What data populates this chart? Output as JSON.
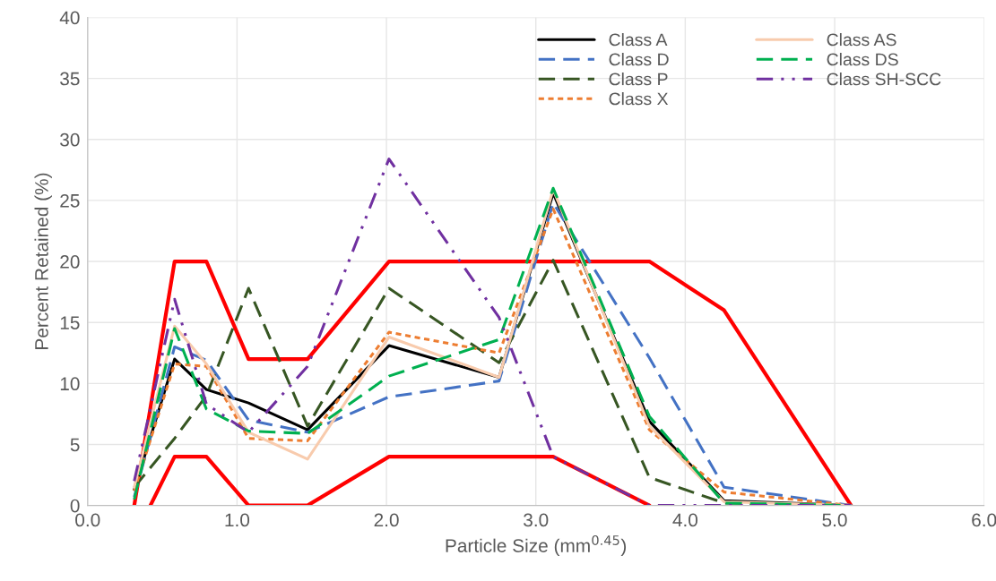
{
  "chart_data": {
    "type": "line",
    "xlabel": "Particle Size (mm$^{0.45}$)",
    "ylabel": "Percent Retained (%)",
    "x": [
      0.312,
      0.582,
      0.795,
      1.077,
      1.472,
      2.017,
      2.754,
      3.116,
      3.76,
      4.26,
      5.11
    ],
    "series": [
      {
        "color": "#ff0000",
        "x": [
          0.312,
          0.582,
          0.795,
          1.077,
          1.472,
          2.017,
          3.76,
          4.26,
          5.11
        ],
        "values": [
          0,
          20,
          20,
          12,
          12,
          20,
          20,
          16,
          0
        ]
      },
      {
        "color": "#ff0000",
        "x": [
          0.42,
          0.582,
          0.795,
          1.077,
          1.472,
          2.017,
          3.116,
          3.76
        ],
        "values": [
          0,
          4,
          4,
          0,
          0,
          4,
          4,
          0
        ]
      },
      {
        "name": "Class A",
        "color": "#000000",
        "line_style": "solid",
        "values": [
          1.3,
          12.0,
          9.5,
          8.4,
          6.2,
          13.1,
          10.5,
          25.6,
          6.9,
          0.4,
          0
        ]
      },
      {
        "name": "Class D",
        "color": "#4472c4",
        "line_style": "dashed",
        "values": [
          0.7,
          13.0,
          11.9,
          7.0,
          6.0,
          8.9,
          10.2,
          24.8,
          12.1,
          1.5,
          0
        ]
      },
      {
        "name": "Class P",
        "color": "#375623",
        "line_style": "dashed",
        "values": [
          1.5,
          5.5,
          9.0,
          17.8,
          6.5,
          17.8,
          11.7,
          20.1,
          2.3,
          0.2,
          0
        ]
      },
      {
        "name": "Class X",
        "color": "#ed7d31",
        "line_style": "dotted",
        "values": [
          1.2,
          11.6,
          11.4,
          5.5,
          5.3,
          14.2,
          12.5,
          24.3,
          6.2,
          1.1,
          0
        ]
      },
      {
        "name": "Class AS",
        "color": "#f8cbad",
        "line_style": "solid",
        "values": [
          1.5,
          14.7,
          11.6,
          6.0,
          3.8,
          13.8,
          10.5,
          25.9,
          6.5,
          0.3,
          0
        ]
      },
      {
        "name": "Class DS",
        "color": "#00b050",
        "line_style": "dashed",
        "values": [
          0.5,
          14.5,
          7.9,
          6.1,
          5.9,
          10.6,
          13.6,
          26.0,
          7.3,
          0.2,
          0
        ]
      },
      {
        "name": "Class SH-SCC",
        "color": "#7030a0",
        "line_style": "dashdot",
        "values": [
          2.0,
          16.9,
          8.3,
          6.0,
          11.4,
          28.4,
          15.4,
          4.0,
          0,
          0,
          0
        ]
      }
    ],
    "xlim": [
      0,
      6
    ],
    "ylim": [
      0,
      40
    ],
    "xticks": [
      {
        "value": 0,
        "label": "0.0"
      },
      {
        "value": 1,
        "label": "1.0"
      },
      {
        "value": 2,
        "label": "2.0"
      },
      {
        "value": 3,
        "label": "3.0"
      },
      {
        "value": 4,
        "label": "4.0"
      },
      {
        "value": 5,
        "label": "5.0"
      },
      {
        "value": 6,
        "label": "6.0"
      }
    ],
    "yticks": [
      0,
      5,
      10,
      15,
      20,
      25,
      30,
      35,
      40
    ],
    "grid": true,
    "legend": "top right",
    "marker": "none"
  }
}
